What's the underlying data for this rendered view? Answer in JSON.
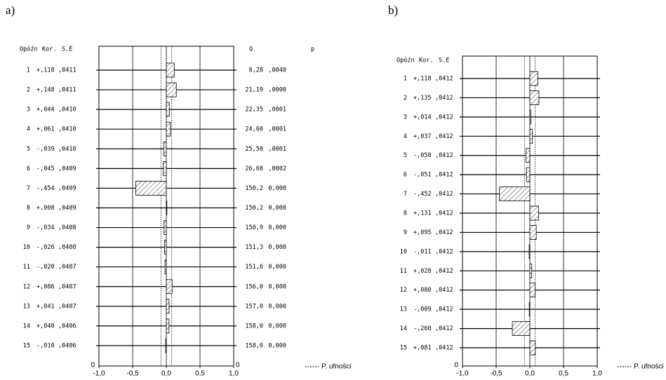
{
  "chart_data": [
    {
      "type": "bar",
      "panel": "a)",
      "headers": [
        "Opóźn",
        "Kor.",
        "S.E"
      ],
      "q_header": "Q",
      "p_header": "p",
      "categories": [
        "1",
        "2",
        "3",
        "4",
        "5",
        "6",
        "7",
        "8",
        "9",
        "10",
        "11",
        "12",
        "13",
        "14",
        "15"
      ],
      "values": [
        0.118,
        0.148,
        0.044,
        0.061,
        -0.039,
        -0.045,
        -0.454,
        0.008,
        -0.034,
        -0.026,
        -0.02,
        0.086,
        0.041,
        0.04,
        -0.01
      ],
      "value_labels": [
        "+,118",
        "+,148",
        "+,044",
        "+,061",
        "-,039",
        "-,045",
        "-,454",
        "+,008",
        "-,034",
        "-,026",
        "-,020",
        "+,086",
        "+,041",
        "+,040",
        "-,010"
      ],
      "se": [
        ",0411",
        ",0411",
        ",0410",
        ",0410",
        ",0410",
        ",0409",
        ",0409",
        ",0409",
        ",0408",
        ",0408",
        ",0407",
        ",0407",
        ",0407",
        ",0406",
        ",0406"
      ],
      "q": [
        "8,28",
        "21,19",
        "22,35",
        "24,60",
        "25,50",
        "26,68",
        "150,2",
        "150,2",
        "150,9",
        "151,3",
        "151,6",
        "156,0",
        "157,0",
        "158,0",
        "158,0"
      ],
      "p": [
        ",0040",
        ",0000",
        ",0001",
        ",0001",
        ",0001",
        ",0002",
        "0,000",
        "0,000",
        "0,000",
        "0,000",
        "0,000",
        "0,000",
        "0,000",
        "0,000",
        "0,000"
      ],
      "zero_labels": [
        "0",
        "0"
      ],
      "xlim": [
        -1,
        1
      ],
      "xticks": [
        {
          "value": -1,
          "label": "-1,0"
        },
        {
          "value": -0.5,
          "label": "-0,5"
        },
        {
          "value": 0,
          "label": "0,0"
        },
        {
          "value": 0.5,
          "label": "0,5"
        },
        {
          "value": 1,
          "label": "1,0"
        }
      ],
      "confidence": {
        "name": "P. ufności",
        "values": [
          -0.08,
          0.08
        ]
      }
    },
    {
      "type": "bar",
      "panel": "b)",
      "headers": [
        "Opóźn",
        "Kor.",
        "S.E"
      ],
      "categories": [
        "1",
        "2",
        "3",
        "4",
        "5",
        "6",
        "7",
        "8",
        "9",
        "10",
        "11",
        "12",
        "13",
        "14",
        "15"
      ],
      "values": [
        0.118,
        0.135,
        0.014,
        0.037,
        -0.058,
        -0.051,
        -0.452,
        0.131,
        0.095,
        -0.011,
        0.028,
        0.08,
        -0.009,
        -0.26,
        0.081
      ],
      "value_labels": [
        "+,118",
        "+,135",
        "+,014",
        "+,037",
        "-,058",
        "-,051",
        "-,452",
        "+,131",
        "+,095",
        "-,011",
        "+,028",
        "+,080",
        "-,009",
        "-,260",
        "+,081"
      ],
      "se": [
        ",0412",
        ",0412",
        ",0412",
        ",0412",
        ",0412",
        ",0412",
        ",0412",
        ",0412",
        ",0412",
        ",0412",
        ",0412",
        ",0412",
        ",0412",
        ",0412",
        ",0412"
      ],
      "zero_labels": [
        "0"
      ],
      "xlim": [
        -1,
        1
      ],
      "xticks": [
        {
          "value": -1,
          "label": "-1,0"
        },
        {
          "value": -0.5,
          "label": "-0,5"
        },
        {
          "value": 0,
          "label": "0,0"
        },
        {
          "value": 0.5,
          "label": "0,5"
        },
        {
          "value": 1,
          "label": "1,0"
        }
      ],
      "confidence": {
        "name": "P. ufności",
        "values": [
          -0.08,
          0.08
        ]
      }
    }
  ]
}
